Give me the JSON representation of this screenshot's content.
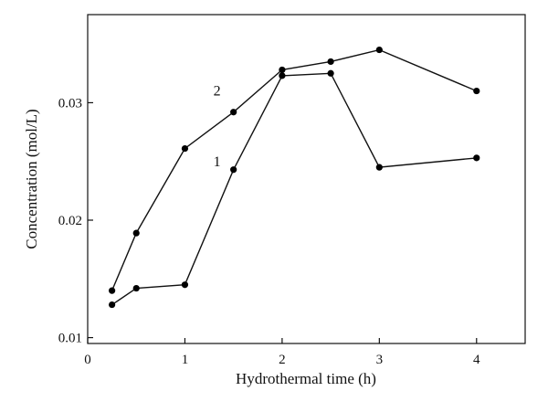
{
  "chart_data": {
    "type": "line",
    "title": "",
    "xlabel": "Hydrothermal time (h)",
    "ylabel": "Concentration (mol/L)",
    "xlim": [
      0,
      4.5
    ],
    "ylim": [
      0.0095,
      0.0375
    ],
    "x_ticks": [
      0,
      1,
      2,
      3,
      4
    ],
    "x_tick_labels": [
      "0",
      "1",
      "2",
      "3",
      "4"
    ],
    "y_ticks": [
      0.01,
      0.02,
      0.03
    ],
    "y_tick_labels": [
      "0.01",
      "0.02",
      "0.03"
    ],
    "grid": false,
    "legend": "none (series labeled inline)",
    "series": [
      {
        "name": "1",
        "label_at": {
          "x": 1.33,
          "y": 0.0246
        },
        "x": [
          0.25,
          0.5,
          1.0,
          1.5,
          2.0,
          2.5,
          3.0,
          4.0
        ],
        "values": [
          0.0128,
          0.0142,
          0.0145,
          0.0243,
          0.0323,
          0.0325,
          0.0245,
          0.0253
        ]
      },
      {
        "name": "2",
        "label_at": {
          "x": 1.33,
          "y": 0.0306
        },
        "x": [
          0.25,
          0.5,
          1.0,
          1.5,
          2.0,
          2.5,
          3.0,
          4.0
        ],
        "values": [
          0.014,
          0.0189,
          0.0261,
          0.0292,
          0.0328,
          0.0335,
          0.0345,
          0.031
        ]
      }
    ],
    "colors": {
      "line": "#111111",
      "marker": "#000000",
      "axis": "#111111"
    }
  }
}
